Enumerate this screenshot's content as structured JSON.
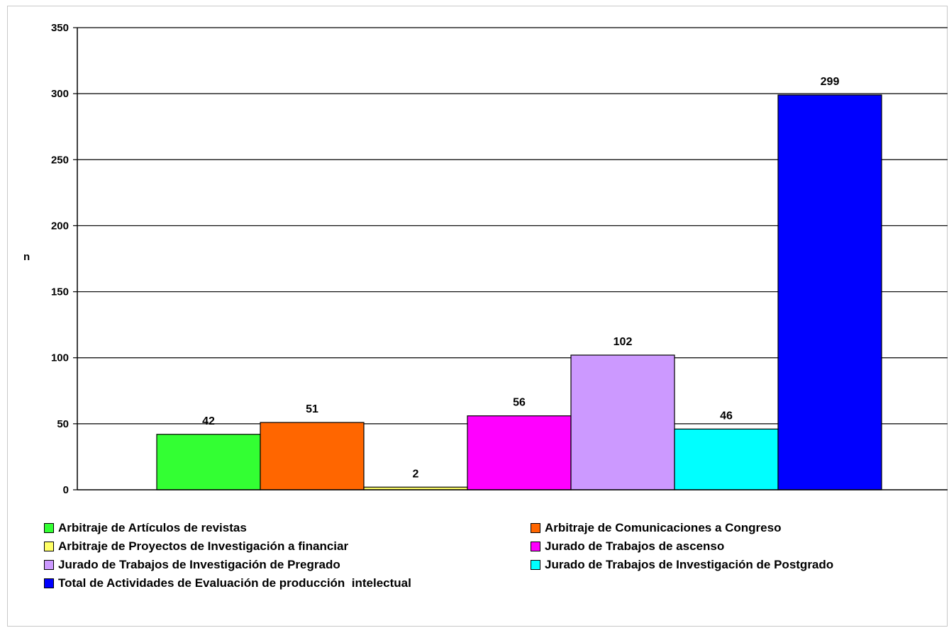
{
  "chart_data": {
    "type": "bar",
    "ylabel": "n",
    "xlabel": "",
    "ylim": [
      0,
      350
    ],
    "yticks": [
      0,
      50,
      100,
      150,
      200,
      250,
      300,
      350
    ],
    "grid": true,
    "legend_position": "bottom",
    "series": [
      {
        "name": "Arbitraje de Artículos de revistas",
        "value": 42,
        "color": "#33ff33"
      },
      {
        "name": "Arbitraje de Comunicaciones a Congreso",
        "value": 51,
        "color": "#ff6600"
      },
      {
        "name": "Arbitraje de Proyectos de Investigación a financiar",
        "value": 2,
        "color": "#ffff66"
      },
      {
        "name": "Jurado de Trabajos de ascenso",
        "value": 56,
        "color": "#ff00ff"
      },
      {
        "name": "Jurado de Trabajos de Investigación de Pregrado",
        "value": 102,
        "color": "#cc99ff"
      },
      {
        "name": "Jurado de Trabajos de Investigación de Postgrado",
        "value": 46,
        "color": "#00ffff"
      },
      {
        "name": "Total de Actividades de Evaluación de producción  intelectual",
        "value": 299,
        "color": "#0000ff"
      }
    ]
  }
}
